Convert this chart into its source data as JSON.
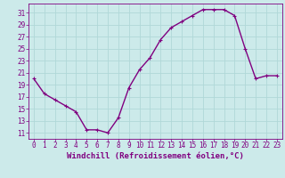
{
  "x": [
    0,
    1,
    2,
    3,
    4,
    5,
    6,
    7,
    8,
    9,
    10,
    11,
    12,
    13,
    14,
    15,
    16,
    17,
    18,
    19,
    20,
    21,
    22,
    23
  ],
  "y": [
    20,
    17.5,
    16.5,
    15.5,
    14.5,
    11.5,
    11.5,
    11,
    13.5,
    18.5,
    21.5,
    23.5,
    26.5,
    28.5,
    29.5,
    30.5,
    31.5,
    31.5,
    31.5,
    30.5,
    25,
    20,
    20.5,
    20.5
  ],
  "line_color": "#800080",
  "marker_color": "#800080",
  "bg_color": "#cceaea",
  "grid_color": "#b0d8d8",
  "xlabel": "Windchill (Refroidissement éolien,°C)",
  "ylabel_ticks": [
    11,
    13,
    15,
    17,
    19,
    21,
    23,
    25,
    27,
    29,
    31
  ],
  "ylim": [
    10.0,
    32.5
  ],
  "xlim": [
    -0.5,
    23.5
  ],
  "xticks": [
    0,
    1,
    2,
    3,
    4,
    5,
    6,
    7,
    8,
    9,
    10,
    11,
    12,
    13,
    14,
    15,
    16,
    17,
    18,
    19,
    20,
    21,
    22,
    23
  ],
  "tick_fontsize": 5.5,
  "xlabel_fontsize": 6.5,
  "line_width": 1.0,
  "marker_size": 2.5
}
